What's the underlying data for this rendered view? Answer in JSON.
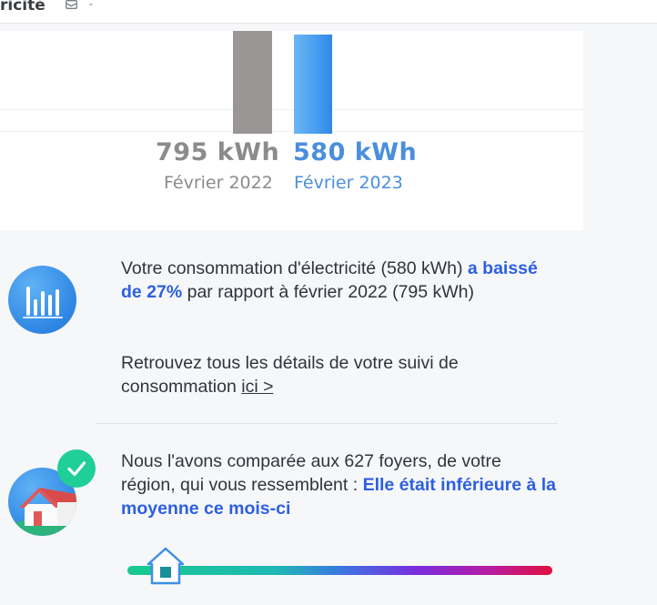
{
  "header": {
    "title": "ricité",
    "mail_icon": "envelope-icon",
    "dropdown_icon": "chevron-down-icon"
  },
  "chart_data": {
    "type": "bar",
    "categories": [
      "Février 2022",
      "Février 2023"
    ],
    "values": [
      795,
      580
    ],
    "value_labels": [
      "795 kWh",
      "580  kWh"
    ],
    "colors": [
      "#9a9696",
      "#3f97ee"
    ],
    "title": "",
    "xlabel": "",
    "ylabel": "",
    "grid": true
  },
  "consumption": {
    "icon": "bar-chart-icon",
    "text_before": "Votre consommation d'électricité (580 kWh) ",
    "highlight": "a baissé de 27%",
    "text_after": " par rapport à février 2022 (795 kWh)",
    "details_text": "Retrouvez tous les détails de votre suivi de consommation ",
    "details_link": "ici >"
  },
  "comparison": {
    "icon": "house-icon",
    "badge_icon": "check-icon",
    "text_before": "Nous l'avons comparée aux 627 foyers, de votre région, qui vous ressemblent : ",
    "highlight": "Elle était inférieure à la moyenne ce mois-ci",
    "marker_icon": "house-marker-icon",
    "slider_position": 0.09
  },
  "colors": {
    "accent_blue": "#2d5fe0",
    "check_green": "#1fcf96"
  }
}
